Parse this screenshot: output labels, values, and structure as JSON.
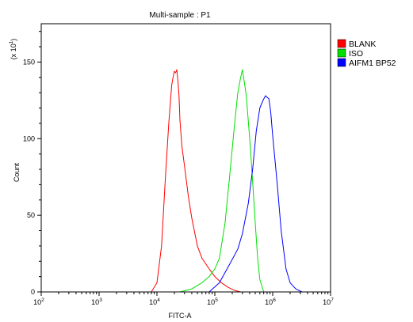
{
  "chart_data": {
    "type": "line",
    "title": "Multi-sample : P1",
    "xlabel": "FITC-A",
    "ylabel": "Count",
    "y_multiplier_label": {
      "prefix": "(x 10",
      "exponent": "1",
      "suffix": ")"
    },
    "x_scale": "log",
    "xlim": [
      100,
      10000000
    ],
    "ylim": [
      0,
      175
    ],
    "x_ticks": [
      {
        "base": "10",
        "exp": "2",
        "value": 100
      },
      {
        "base": "10",
        "exp": "3",
        "value": 1000
      },
      {
        "base": "10",
        "exp": "4",
        "value": 10000
      },
      {
        "base": "10",
        "exp": "5",
        "value": 100000
      },
      {
        "base": "10",
        "exp": "6",
        "value": 1000000
      },
      {
        "base": "10",
        "exp": "7",
        "value": 10000000
      }
    ],
    "y_ticks": [
      "0",
      "50",
      "100",
      "150"
    ],
    "y_tick_values": [
      0,
      50,
      100,
      150
    ],
    "legend_position": "right",
    "series": [
      {
        "name": "BLANK",
        "color": "#ff0000",
        "x": [
          8000,
          10000,
          12000,
          14000,
          16000,
          18000,
          19000,
          20000,
          21000,
          22000,
          23000,
          24000,
          25000,
          27000,
          30000,
          35000,
          40000,
          50000,
          60000,
          80000,
          100000,
          130000,
          170000,
          220000,
          280000
        ],
        "y": [
          0,
          6,
          30,
          75,
          110,
          135,
          140,
          144,
          143,
          145,
          138,
          128,
          112,
          95,
          82,
          62,
          48,
          30,
          22,
          15,
          10,
          6,
          3,
          1,
          0
        ]
      },
      {
        "name": "ISO",
        "color": "#00e000",
        "x": [
          25000,
          40000,
          60000,
          80000,
          100000,
          120000,
          150000,
          180000,
          220000,
          250000,
          280000,
          300000,
          320000,
          350000,
          400000,
          450000,
          500000,
          550000,
          600000,
          700000
        ],
        "y": [
          0,
          2,
          6,
          10,
          15,
          22,
          45,
          75,
          110,
          130,
          140,
          145,
          138,
          128,
          100,
          72,
          45,
          22,
          8,
          0
        ]
      },
      {
        "name": "AIFM1 BP52",
        "color": "#0000ff",
        "x": [
          80000,
          120000,
          180000,
          250000,
          300000,
          380000,
          450000,
          520000,
          600000,
          680000,
          750000,
          800000,
          860000,
          920000,
          1000000,
          1200000,
          1400000,
          1700000,
          2000000,
          2500000,
          3200000
        ],
        "y": [
          0,
          6,
          18,
          28,
          38,
          58,
          80,
          105,
          120,
          125,
          128,
          127,
          126,
          118,
          102,
          70,
          40,
          15,
          6,
          2,
          0
        ]
      }
    ]
  }
}
